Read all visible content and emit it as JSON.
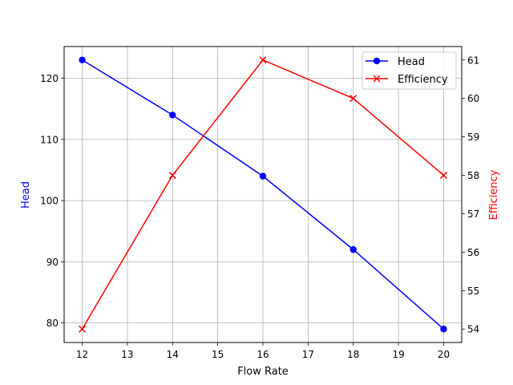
{
  "chart_data": {
    "type": "line",
    "title": "",
    "x": [
      12,
      14,
      16,
      18,
      20
    ],
    "xlabel": "Flow Rate",
    "xlim": [
      11.6,
      20.4
    ],
    "xticks": [
      12,
      13,
      14,
      15,
      16,
      17,
      18,
      19,
      20
    ],
    "grid": true,
    "legend_position": "upper right",
    "series": [
      {
        "name": "Head",
        "axis": "left",
        "color": "#0000ff",
        "marker": "circle",
        "values": [
          123,
          114,
          104,
          92,
          79
        ]
      },
      {
        "name": "Efficiency",
        "axis": "right",
        "color": "#ff0000",
        "marker": "x",
        "values": [
          54,
          58,
          61,
          60,
          58
        ]
      }
    ],
    "left_axis": {
      "label": "Head",
      "color": "#0000ff",
      "ylim": [
        76.8,
        125.2
      ],
      "ticks": [
        80,
        90,
        100,
        110,
        120
      ]
    },
    "right_axis": {
      "label": "Efficiency",
      "color": "#ff0000",
      "ylim": [
        53.65,
        61.35
      ],
      "ticks": [
        54,
        55,
        56,
        57,
        58,
        59,
        60,
        61
      ]
    }
  }
}
